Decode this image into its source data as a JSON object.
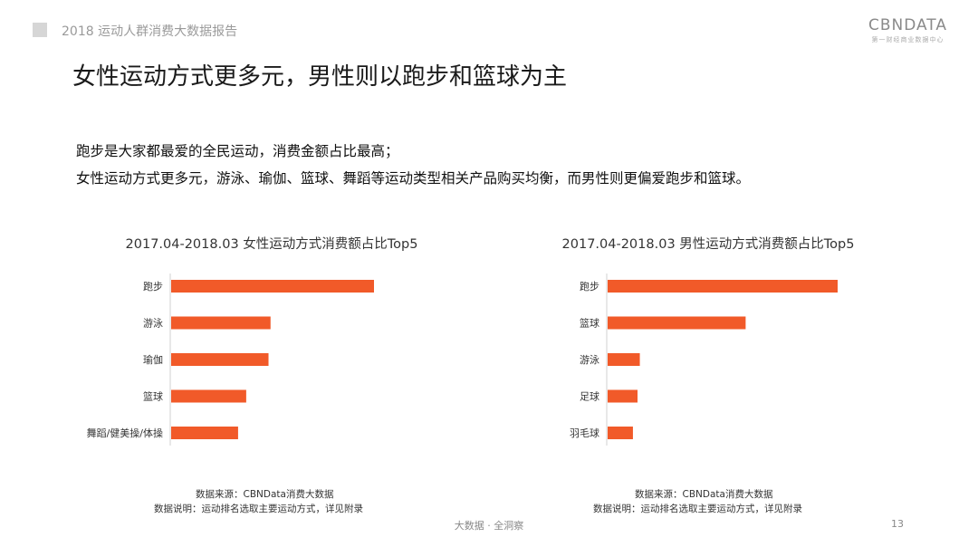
{
  "header": {
    "report_title": "2018 运动人群消费大数据报告",
    "logo_main": "CBNDATA",
    "logo_sub": "第一财经商业数据中心"
  },
  "slide": {
    "title": "女性运动方式更多元，男性则以跑步和篮球为主",
    "desc_line1": "跑步是大家都最爱的全民运动，消费金额占比最高；",
    "desc_line2": "女性运动方式更多元，游泳、瑜伽、篮球、舞蹈等运动类型相关产品购买均衡，而男性则更偏爱跑步和篮球。"
  },
  "colors": {
    "bar": "#f15a29"
  },
  "chart_data": [
    {
      "type": "bar",
      "orientation": "horizontal",
      "title": "2017.04-2018.03 女性运动方式消费额占比Top5",
      "categories": [
        "跑步",
        "游泳",
        "瑜伽",
        "篮球",
        "舞蹈/健美操/体操"
      ],
      "values": [
        100,
        49,
        48,
        37,
        33
      ],
      "source_line1": "数据来源：CBNData消费大数据",
      "source_line2": "数据说明：运动排名选取主要运动方式，详见附录"
    },
    {
      "type": "bar",
      "orientation": "horizontal",
      "title": "2017.04-2018.03 男性运动方式消费额占比Top5",
      "categories": [
        "跑步",
        "篮球",
        "游泳",
        "足球",
        "羽毛球"
      ],
      "values": [
        100,
        60,
        14,
        13,
        11
      ],
      "source_line1": "数据来源：CBNData消费大数据",
      "source_line2": "数据说明：运动排名选取主要运动方式，详见附录"
    }
  ],
  "footer": {
    "text": "大数据 · 全洞察",
    "page_number": "13"
  }
}
